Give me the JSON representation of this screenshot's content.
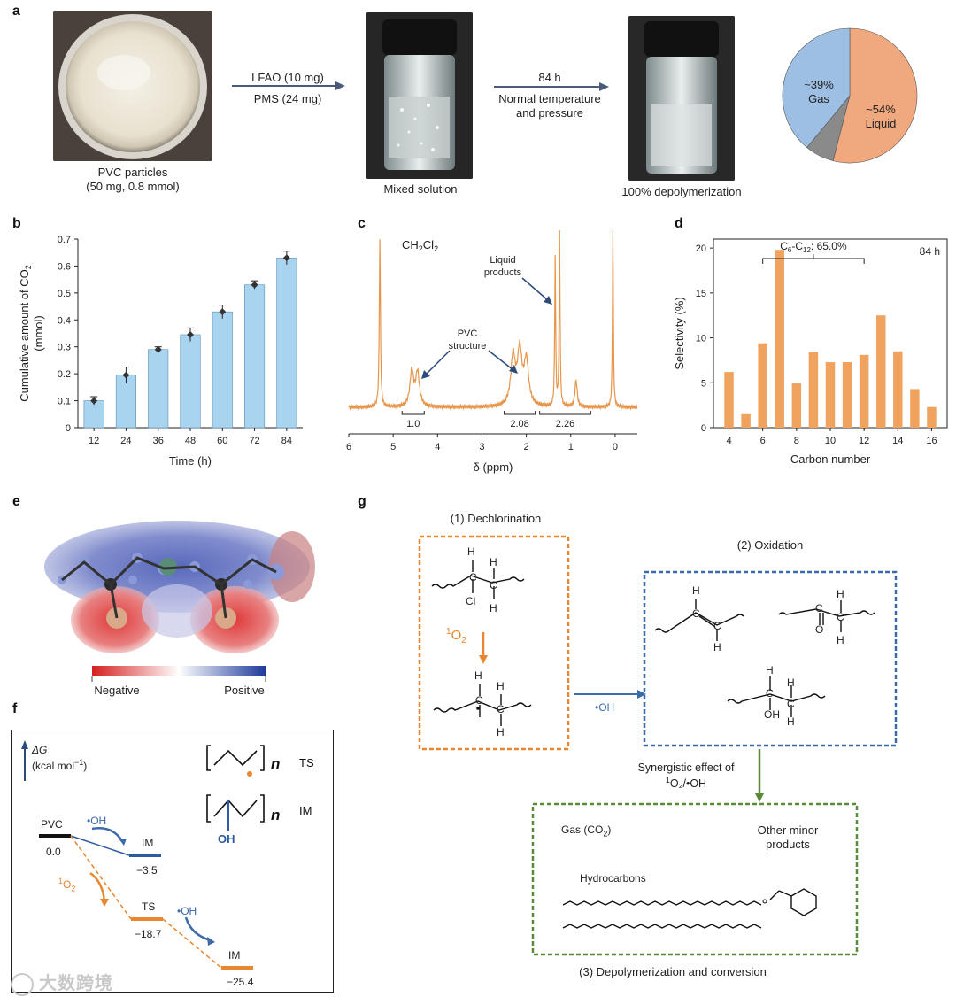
{
  "panels": {
    "a": "a",
    "b": "b",
    "c": "c",
    "d": "d",
    "e": "e",
    "f": "f",
    "g": "g"
  },
  "panel_a": {
    "pvc_caption_1": "PVC particles",
    "pvc_caption_2": "(50 mg, 0.8 mmol)",
    "arrow1_top": "LFAO (10 mg)",
    "arrow1_bottom": "PMS (24 mg)",
    "mixed_caption": "Mixed solution",
    "arrow2_top": "84 h",
    "arrow2_bottom_1": "Normal temperature",
    "arrow2_bottom_2": "and pressure",
    "depoly_caption": "100% depolymerization",
    "pie": {
      "gas_pct": "~39%",
      "gas_label": "Gas",
      "liquid_pct": "~54%",
      "liquid_label": "Liquid",
      "gas_value": 39,
      "liquid_value": 54,
      "other_value": 7,
      "gas_color": "#9dbfe3",
      "liquid_color": "#f0a97e",
      "other_color": "#8a8a8a"
    }
  },
  "chart_data": [
    {
      "type": "bar",
      "panel": "b",
      "categories": [
        "12",
        "24",
        "36",
        "48",
        "60",
        "72",
        "84"
      ],
      "values": [
        0.1,
        0.195,
        0.29,
        0.345,
        0.43,
        0.53,
        0.63
      ],
      "errors": [
        0.015,
        0.03,
        0.01,
        0.025,
        0.025,
        0.015,
        0.025
      ],
      "xlabel": "Time (h)",
      "ylabel_1": "Cumulative amount of CO",
      "ylabel_sub": "2",
      "ylabel_2": "(mmol)",
      "ylim": [
        0,
        0.7
      ],
      "yticks": [
        "0",
        "0.1",
        "0.2",
        "0.3",
        "0.4",
        "0.5",
        "0.6",
        "0.7"
      ],
      "bar_color": "#a8d4f0"
    },
    {
      "type": "line",
      "panel": "c",
      "xlabel": "δ (ppm)",
      "xlim": [
        6,
        -0.5
      ],
      "xticks": [
        "6",
        "5",
        "4",
        "3",
        "2",
        "1",
        "0"
      ],
      "solvent_label_main": "CH",
      "solvent_sub1": "2",
      "solvent_cl": "Cl",
      "solvent_sub2": "2",
      "pvc_structure_1": "PVC",
      "pvc_structure_2": "structure",
      "liquid_products_1": "Liquid",
      "liquid_products_2": "products",
      "integrals": [
        "1.0",
        "2.08",
        "2.26"
      ],
      "peaks_ppm": [
        5.3,
        4.58,
        4.45,
        2.3,
        2.15,
        2.0,
        1.25,
        1.35,
        0.88,
        0.05
      ],
      "line_color": "#e8954a"
    },
    {
      "type": "bar",
      "panel": "d",
      "categories": [
        "4",
        "5",
        "6",
        "7",
        "8",
        "9",
        "10",
        "11",
        "12",
        "13",
        "14",
        "15",
        "16"
      ],
      "values": [
        6.2,
        1.5,
        9.4,
        19.8,
        5.0,
        8.4,
        7.3,
        7.3,
        8.1,
        12.5,
        8.5,
        4.3,
        2.3
      ],
      "xlabel": "Carbon number",
      "ylabel": "Selectivity (%)",
      "ylim": [
        0,
        21
      ],
      "yticks": [
        "0",
        "5",
        "10",
        "15",
        "20"
      ],
      "xticks": [
        "4",
        "6",
        "8",
        "10",
        "12",
        "14",
        "16"
      ],
      "bracket_label_c": "C",
      "bracket_sub1": "6",
      "bracket_dash": "-C",
      "bracket_sub2": "12",
      "bracket_value": ": 65.0%",
      "time_label": "84 h",
      "bar_color": "#f0a35e"
    },
    {
      "type": "line",
      "panel": "f",
      "axis_label_1": "ΔG",
      "axis_label_2": "(kcal mol",
      "axis_label_sup": "−1",
      "axis_label_3": ")",
      "states": [
        {
          "name": "PVC",
          "energy": "0.0"
        },
        {
          "name": "IM",
          "energy": "−3.5"
        },
        {
          "name": "TS",
          "energy": "−18.7"
        },
        {
          "name": "IM",
          "energy": "−25.4"
        }
      ],
      "oh_label": "•OH",
      "singlet_label_sup": "1",
      "singlet_label": "O",
      "singlet_sub": "2",
      "legend_ts": "TS",
      "legend_im": "IM",
      "legend_oh": "OH",
      "legend_n": "n"
    }
  ],
  "panel_e": {
    "negative": "Negative",
    "positive": "Positive"
  },
  "panel_g": {
    "dechlorination": "(1)  Dechlorination",
    "oxidation": "(2)  Oxidation",
    "depoly": "(3)  Depolymerization and conversion",
    "singlet_sup": "1",
    "singlet": "O",
    "singlet_sub": "2",
    "oh": "•OH",
    "synergy_1": "Synergistic effect of",
    "synergy_2": "O₂/•OH",
    "synergy_sup": "1",
    "gas": "Gas (CO",
    "gas_sub": "2",
    "gas_close": ")",
    "other_1": "Other minor",
    "other_2": "products",
    "hydrocarbons": "Hydrocarbons",
    "atom_h": "H",
    "atom_c": "C",
    "atom_cl": "Cl",
    "atom_o": "O",
    "atom_oh": "OH",
    "orange": "#e8872e",
    "blue": "#3d6aa8",
    "green": "#5a8a3a"
  },
  "watermark": "大数跨境"
}
